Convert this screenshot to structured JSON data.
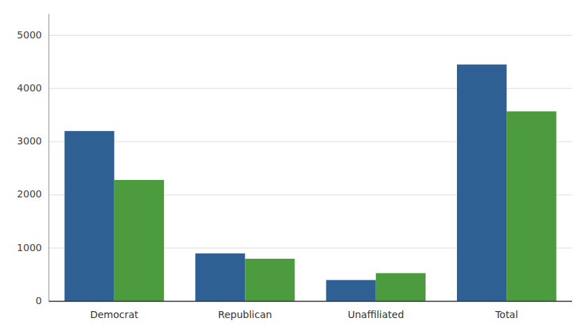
{
  "chart_data": {
    "type": "bar",
    "categories": [
      "Democrat",
      "Republican",
      "Unaffiliated",
      "Total"
    ],
    "series": [
      {
        "color": "#2e6094",
        "values": [
          3200,
          900,
          400,
          4450
        ]
      },
      {
        "color": "#4d9b3f",
        "values": [
          2280,
          800,
          530,
          3570
        ]
      }
    ],
    "ylim": [
      0,
      5400
    ],
    "yticks": [
      0,
      1000,
      2000,
      3000,
      4000,
      5000
    ],
    "grid": true
  }
}
